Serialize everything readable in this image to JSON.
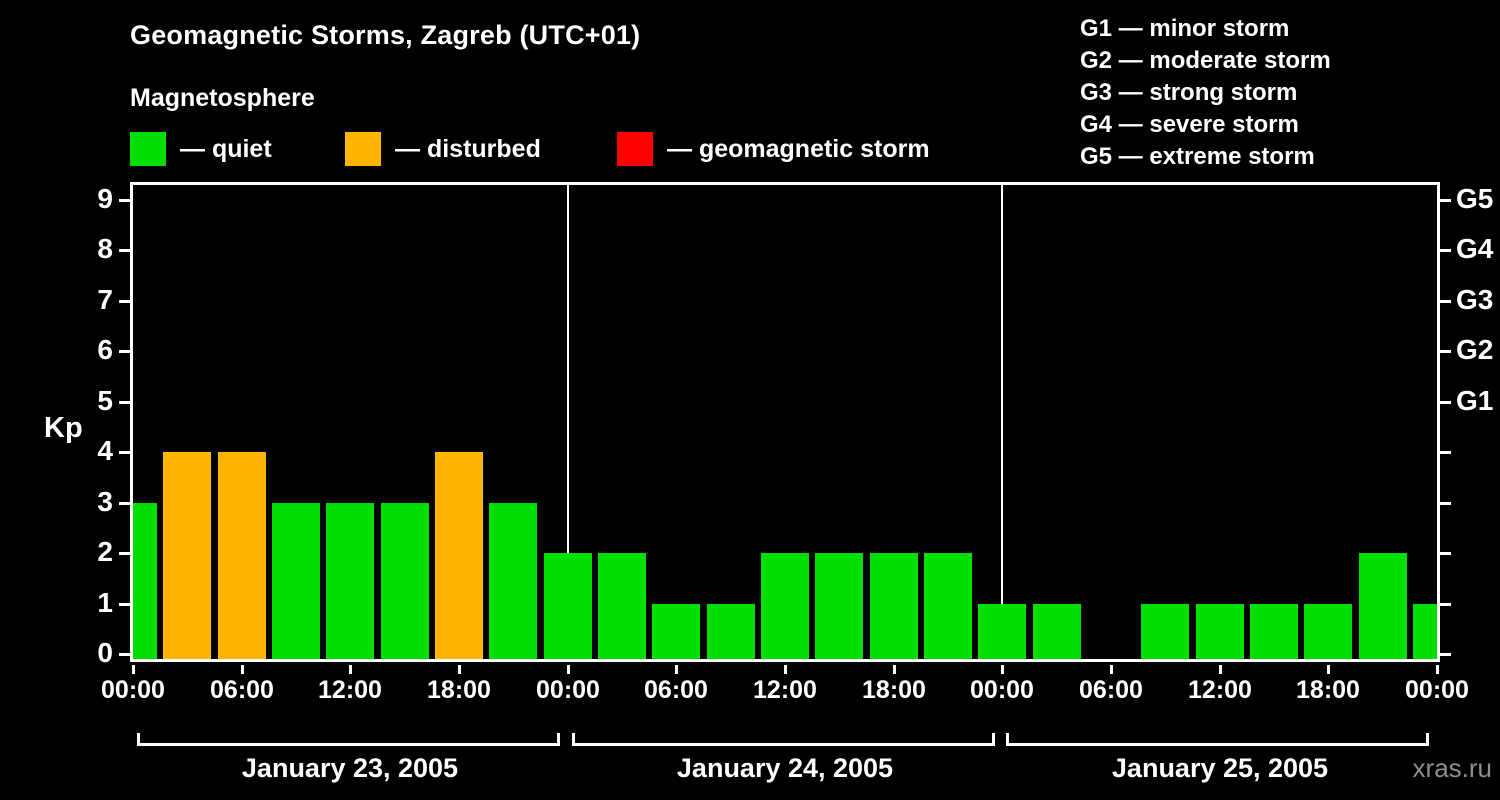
{
  "title": "Geomagnetic Storms, Zagreb (UTC+01)",
  "subtitle": "Magnetosphere",
  "kp_axis_label": "Kp",
  "watermark": "xras.ru",
  "colors": {
    "background": "#000000",
    "foreground": "#ffffff",
    "quiet": "#00df00",
    "disturbed": "#ffb400",
    "storm": "#ff0000"
  },
  "legend": [
    {
      "key": "quiet",
      "label": "— quiet"
    },
    {
      "key": "disturbed",
      "label": "— disturbed"
    },
    {
      "key": "storm",
      "label": "— geomagnetic storm"
    }
  ],
  "g_legend": [
    "G1 — minor storm",
    "G2 — moderate storm",
    "G3 — strong storm",
    "G4 — severe storm",
    "G5 — extreme storm"
  ],
  "chart_data": {
    "type": "bar",
    "title": "Geomagnetic Storms, Zagreb (UTC+01)",
    "ylabel": "Kp",
    "ylim": [
      0,
      9.4
    ],
    "y_ticks": [
      0,
      1,
      2,
      3,
      4,
      5,
      6,
      7,
      8,
      9
    ],
    "right_axis": [
      {
        "kp": 5,
        "label": "G1"
      },
      {
        "kp": 6,
        "label": "G2"
      },
      {
        "kp": 7,
        "label": "G3"
      },
      {
        "kp": 8,
        "label": "G4"
      },
      {
        "kp": 9,
        "label": "G5"
      }
    ],
    "x_tick_labels": [
      "00:00",
      "06:00",
      "12:00",
      "18:00",
      "00:00",
      "06:00",
      "12:00",
      "18:00",
      "00:00",
      "06:00",
      "12:00",
      "18:00",
      "00:00"
    ],
    "interval_hours": 3,
    "hours_span": 72,
    "days": [
      {
        "label": "January 23, 2005",
        "kp": [
          3,
          4,
          4,
          3,
          3,
          3,
          4,
          3
        ]
      },
      {
        "label": "January 24, 2005",
        "kp": [
          2,
          2,
          1,
          1,
          2,
          2,
          2,
          2
        ]
      },
      {
        "label": "January 25, 2005",
        "kp": [
          1,
          1,
          0,
          1,
          1,
          1,
          1,
          2
        ]
      }
    ],
    "trailing_value": 1,
    "color_rule": {
      "quiet_max": 3,
      "disturbed": 4,
      "storm_min": 5
    },
    "grid": false,
    "legend_position": "top-left"
  }
}
